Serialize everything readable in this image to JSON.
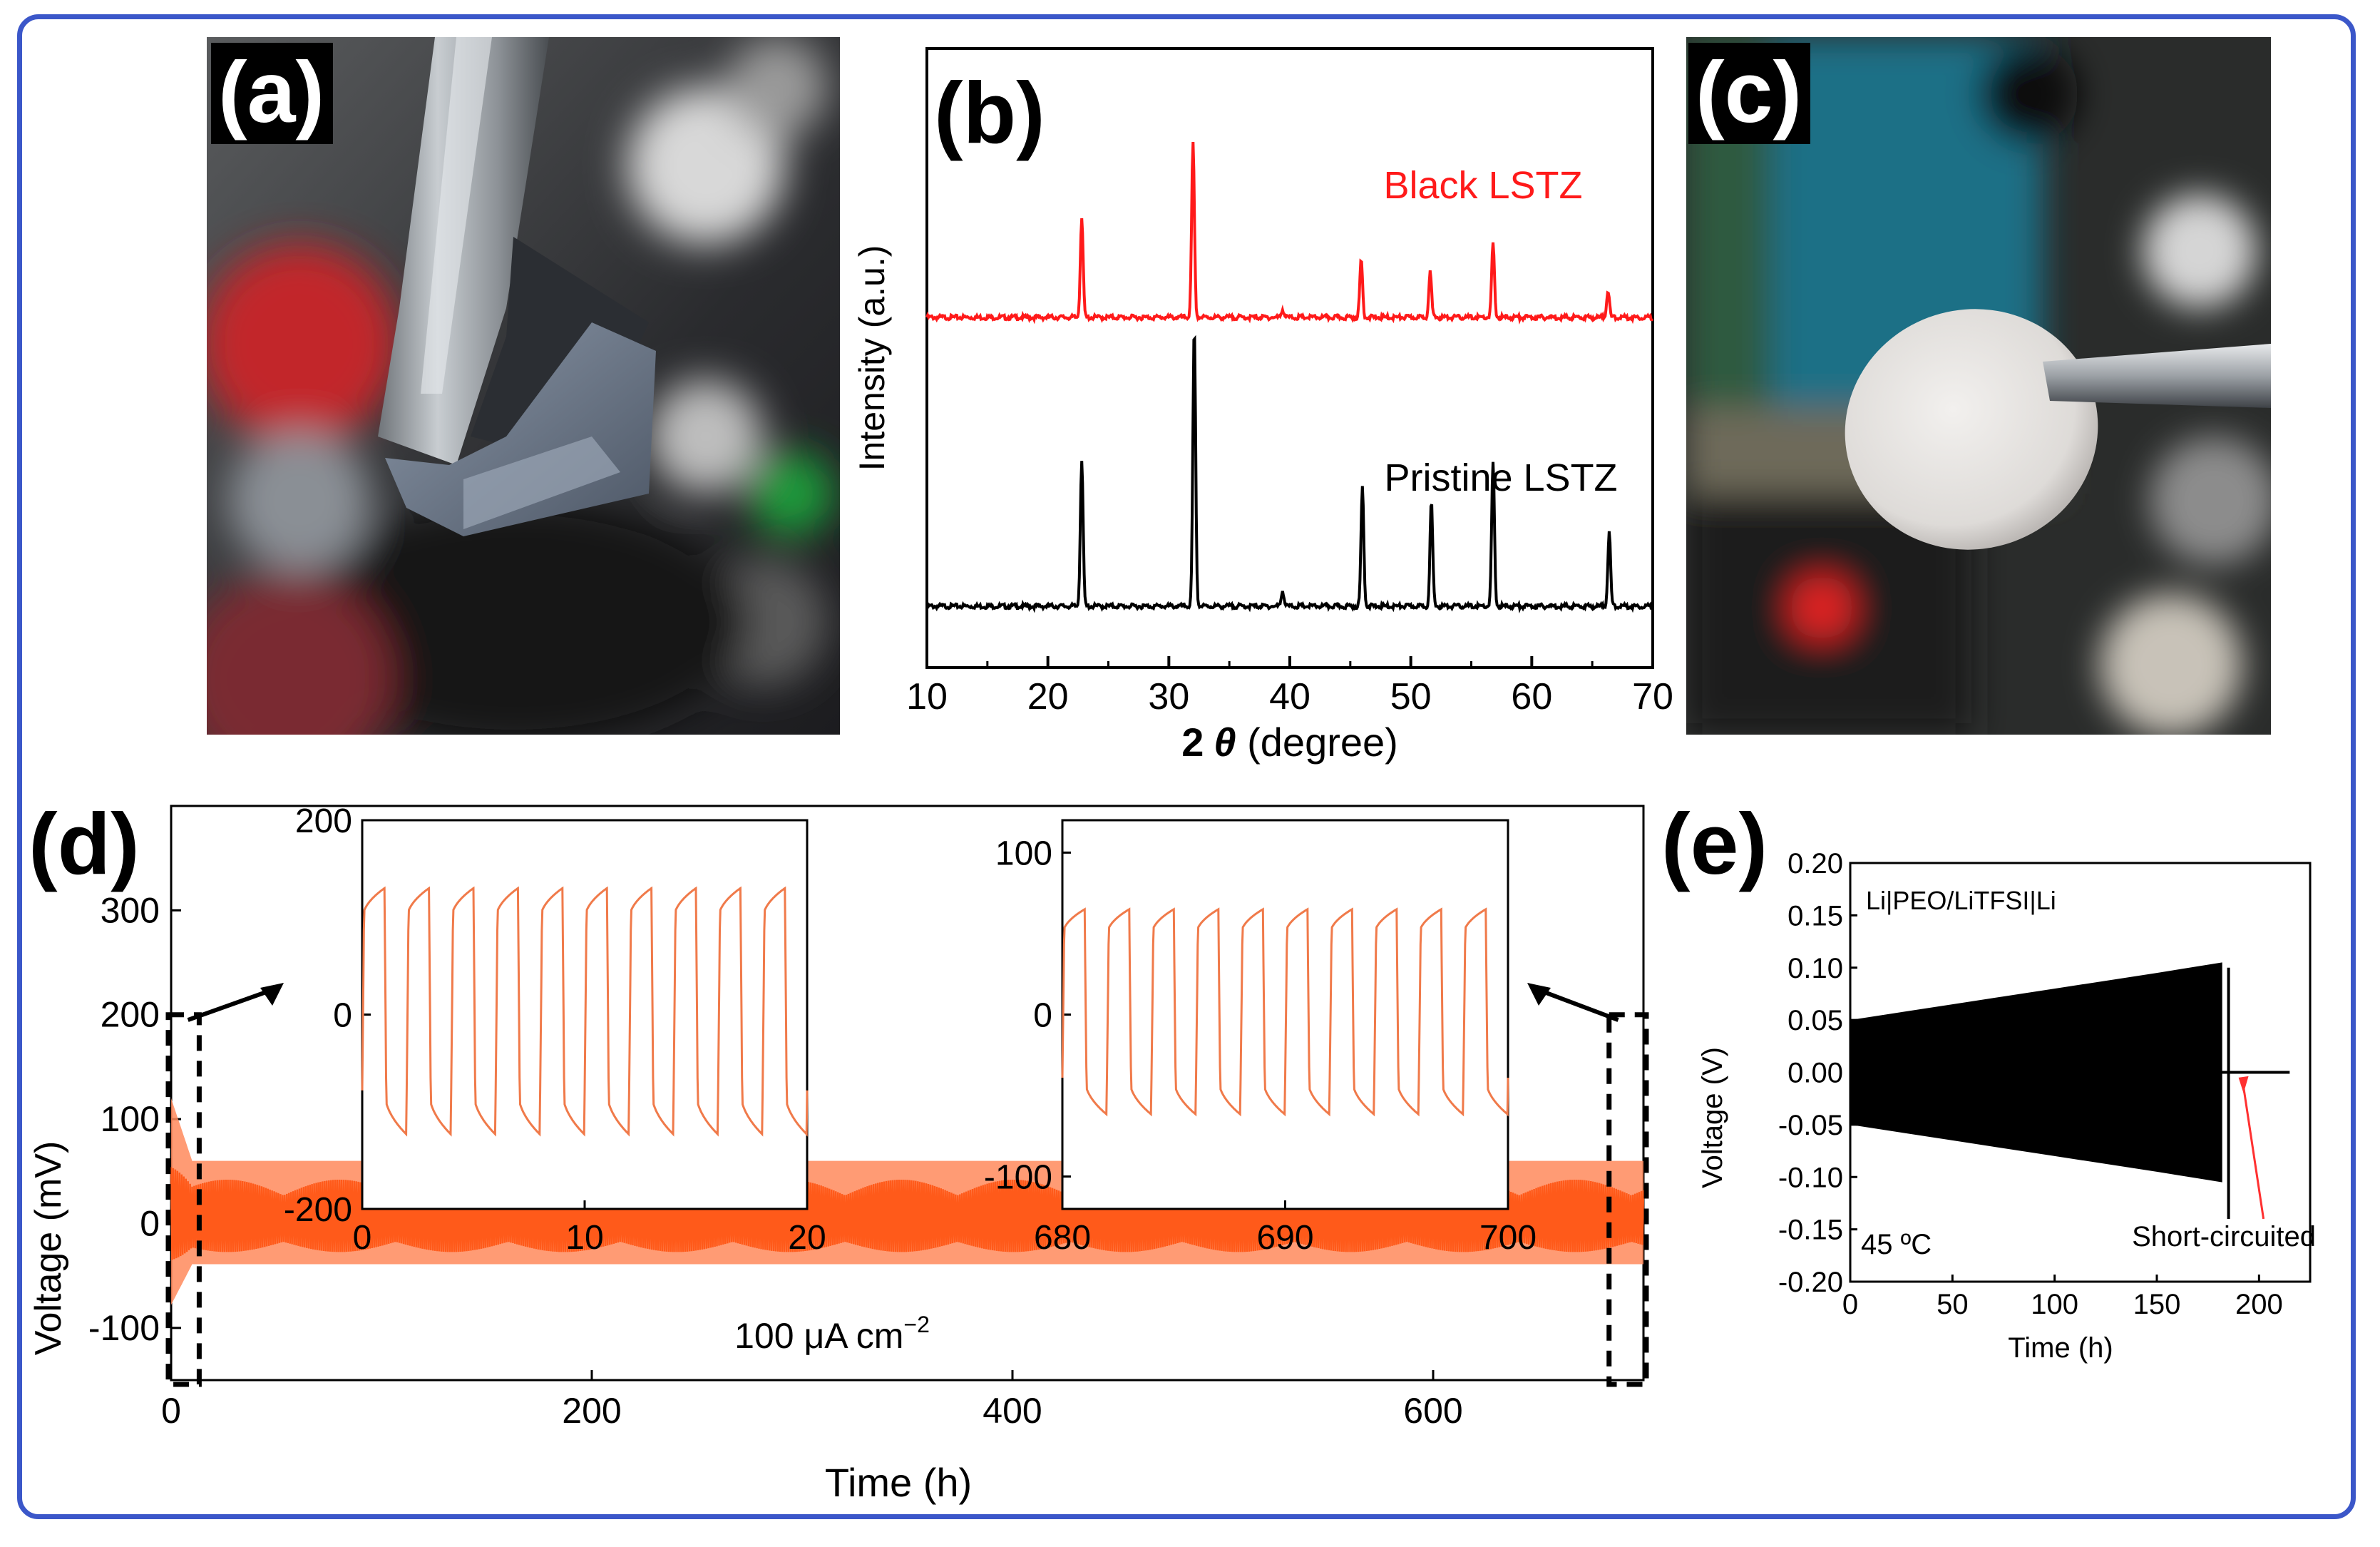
{
  "panels": {
    "a": {
      "label": "(a)"
    },
    "b": {
      "label": "(b)"
    },
    "c": {
      "label": "(c)"
    },
    "d": {
      "label": "(d)"
    },
    "e": {
      "label": "(e)"
    }
  },
  "chart_data": [
    {
      "panel": "b",
      "type": "line",
      "xlabel_prefix": "2",
      "xlabel_symbol": "θ",
      "xlabel_suffix": " (degree)",
      "ylabel": "Intensity (a.u.)",
      "xlim": [
        10,
        70
      ],
      "xticks": [
        10,
        20,
        30,
        40,
        50,
        60,
        70
      ],
      "yticks_shown": false,
      "series": [
        {
          "name": "Black LSTZ",
          "color": "#ff1a1a",
          "peaks": [
            [
              22.8,
              0.26
            ],
            [
              32.0,
              0.45
            ],
            [
              39.4,
              0.02
            ],
            [
              45.9,
              0.15
            ],
            [
              51.6,
              0.12
            ],
            [
              56.8,
              0.19
            ],
            [
              66.3,
              0.07
            ]
          ]
        },
        {
          "name": "Pristine LSTZ",
          "color": "#000000",
          "peaks": [
            [
              22.8,
              0.38
            ],
            [
              32.1,
              0.72
            ],
            [
              39.4,
              0.04
            ],
            [
              46.0,
              0.31
            ],
            [
              51.7,
              0.27
            ],
            [
              56.8,
              0.37
            ],
            [
              66.4,
              0.19
            ]
          ]
        }
      ]
    },
    {
      "panel": "d",
      "type": "line",
      "xlabel": "Time (h)",
      "ylabel": "Voltage (mV)",
      "xlim": [
        0,
        700
      ],
      "ylim": [
        -150,
        400
      ],
      "xticks": [
        0,
        200,
        400,
        600
      ],
      "yticks": [
        -100,
        0,
        100,
        200,
        300
      ],
      "annotation": "100 μA cm",
      "annotation_sup": "−2",
      "color": "#ff5a1a",
      "envelope_mV": [
        [
          0,
          120
        ],
        [
          10,
          60
        ],
        [
          700,
          60
        ]
      ],
      "insets": [
        {
          "xlim": [
            0,
            20
          ],
          "ylim": [
            -200,
            200
          ],
          "xticks": [
            0,
            10,
            20
          ],
          "yticks": [
            -200,
            0,
            200
          ],
          "amplitude_mV": 130
        },
        {
          "xlim": [
            680,
            700
          ],
          "ylim": [
            -120,
            120
          ],
          "xticks": [
            680,
            690,
            700
          ],
          "yticks": [
            -100,
            0,
            100
          ],
          "amplitude_mV": 65
        }
      ]
    },
    {
      "panel": "e",
      "type": "area",
      "xlabel": "Time (h)",
      "ylabel": "Voltage (V)",
      "xlim": [
        0,
        225
      ],
      "ylim": [
        -0.2,
        0.2
      ],
      "xticks": [
        0,
        50,
        100,
        150,
        200
      ],
      "yticks": [
        -0.2,
        -0.15,
        -0.1,
        -0.05,
        0.0,
        0.05,
        0.1,
        0.15,
        0.2
      ],
      "yticklabels": [
        "-0.20",
        "-0.15",
        "-0.10",
        "-0.05",
        "0.00",
        "0.05",
        "0.10",
        "0.15",
        "0.20"
      ],
      "title": "Li|PEO/LiTFSI|Li",
      "temperature": "45 ºC",
      "annotation": "Short-circuited",
      "envelope_V": [
        [
          0,
          0.05
        ],
        [
          50,
          0.065
        ],
        [
          100,
          0.08
        ],
        [
          150,
          0.095
        ],
        [
          182,
          0.105
        ]
      ],
      "short_circuit_h": 183,
      "color": "#000000"
    }
  ]
}
